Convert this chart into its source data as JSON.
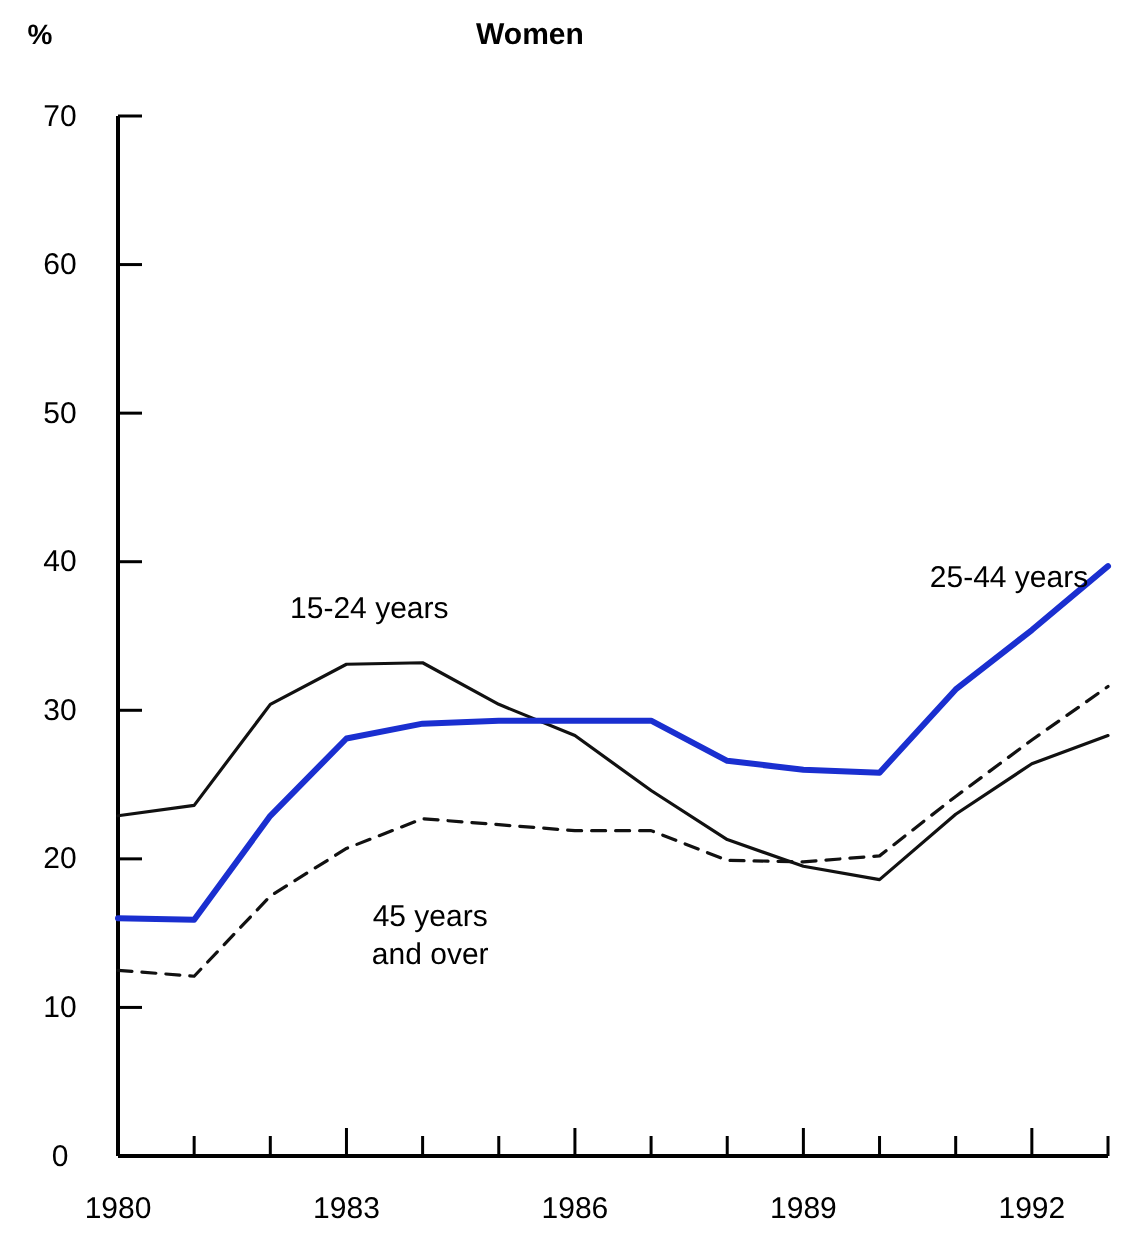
{
  "chart_data": {
    "type": "line",
    "title": "Women",
    "ylabel": "%",
    "x": [
      1980,
      1981,
      1982,
      1983,
      1984,
      1985,
      1986,
      1987,
      1988,
      1989,
      1990,
      1991,
      1992,
      1993
    ],
    "series": [
      {
        "name": "15-24 years",
        "color": "#111111",
        "line_style": "solid",
        "values": [
          22.9,
          23.6,
          30.4,
          33.1,
          33.2,
          30.4,
          28.3,
          24.6,
          21.3,
          19.5,
          18.6,
          23,
          26.4,
          28.3
        ]
      },
      {
        "name": "25-44 years",
        "color": "#1a2fd0",
        "line_style": "solid",
        "values": [
          16,
          15.9,
          22.9,
          28.1,
          29.1,
          29.3,
          29.3,
          29.3,
          26.6,
          26,
          25.8,
          31.4,
          35.4,
          39.7
        ]
      },
      {
        "name": "45 years and over",
        "color": "#111111",
        "line_style": "dashed",
        "values": [
          12.5,
          12.1,
          17.5,
          20.7,
          22.7,
          22.3,
          21.9,
          21.9,
          19.9,
          19.8,
          20.2,
          24.2,
          28,
          31.6
        ]
      }
    ],
    "xlim": [
      1980,
      1993
    ],
    "xticks": [
      1980,
      {
        "value": 1981,
        "label": null
      },
      {
        "value": 1982,
        "label": null
      },
      1983,
      {
        "value": 1984,
        "label": null
      },
      {
        "value": 1985,
        "label": null
      },
      1986,
      {
        "value": 1987,
        "label": null
      },
      {
        "value": 1988,
        "label": null
      },
      1989,
      {
        "value": 1990,
        "label": null
      },
      {
        "value": 1991,
        "label": null
      },
      1992,
      {
        "value": 1993,
        "label": null
      }
    ],
    "ylim": [
      0,
      70
    ],
    "yticks": [
      0,
      10,
      20,
      30,
      40,
      50,
      60,
      70
    ],
    "grid": false,
    "marker": "none"
  }
}
